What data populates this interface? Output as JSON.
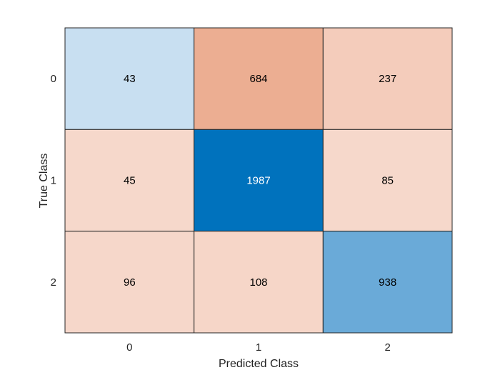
{
  "chart_data": {
    "type": "heatmap",
    "title": "",
    "xlabel": "Predicted Class",
    "ylabel": "True Class",
    "x_categories": [
      "0",
      "1",
      "2"
    ],
    "y_categories": [
      "0",
      "1",
      "2"
    ],
    "values": [
      [
        43,
        684,
        237
      ],
      [
        45,
        1987,
        85
      ],
      [
        96,
        108,
        938
      ]
    ],
    "cell_colors": [
      [
        "#c8dff1",
        "#ecae92",
        "#f4ccbb"
      ],
      [
        "#f6d8cb",
        "#0072bd",
        "#f6d8cb"
      ],
      [
        "#f6d7ca",
        "#f6d6c8",
        "#6aaad8"
      ]
    ],
    "text_colors": [
      [
        "#000000",
        "#000000",
        "#000000"
      ],
      [
        "#000000",
        "#ffffff",
        "#000000"
      ],
      [
        "#000000",
        "#000000",
        "#000000"
      ]
    ],
    "grid": true,
    "legend": "none"
  }
}
